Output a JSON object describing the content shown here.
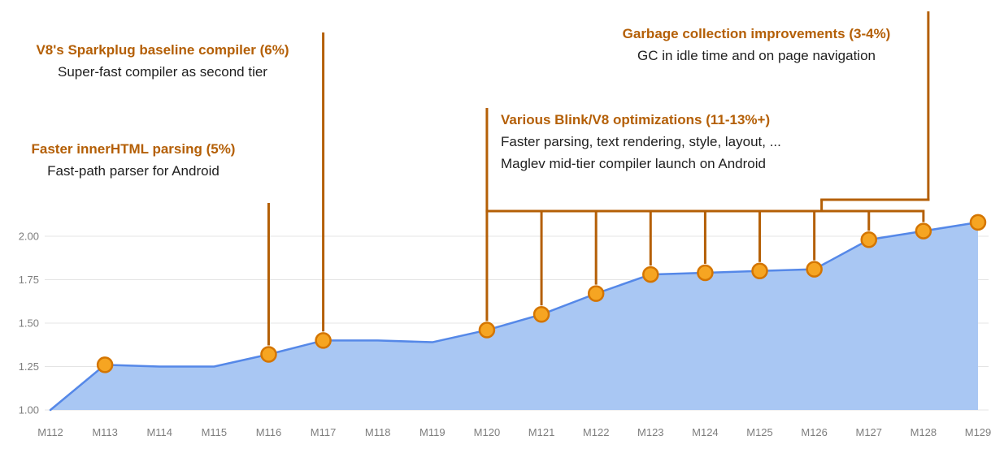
{
  "chart_data": {
    "type": "area",
    "title": "",
    "xlabel": "",
    "ylabel": "",
    "categories": [
      "M112",
      "M113",
      "M114",
      "M115",
      "M116",
      "M117",
      "M118",
      "M119",
      "M120",
      "M121",
      "M122",
      "M123",
      "M124",
      "M125",
      "M126",
      "M127",
      "M128",
      "M129"
    ],
    "values": [
      1.0,
      1.26,
      1.25,
      1.25,
      1.32,
      1.4,
      1.4,
      1.39,
      1.46,
      1.55,
      1.67,
      1.78,
      1.79,
      1.8,
      1.81,
      1.98,
      2.03,
      2.08
    ],
    "marker_milestones": [
      "M113",
      "M116",
      "M117",
      "M120",
      "M121",
      "M122",
      "M123",
      "M124",
      "M125",
      "M126",
      "M127",
      "M128",
      "M129"
    ],
    "y_ticks": [
      1.0,
      1.25,
      1.5,
      1.75,
      2.0
    ],
    "y_tick_labels": [
      "1.00",
      "1.25",
      "1.50",
      "1.75",
      "2.00"
    ],
    "ylim": [
      1.0,
      2.15
    ],
    "grid": "horizontal",
    "legend": "none"
  },
  "annotations": {
    "sparkplug": {
      "title": "V8's Sparkplug baseline compiler (6%)",
      "subtitle": "Super-fast compiler as second tier",
      "target": "M117"
    },
    "innerhtml": {
      "title": "Faster innerHTML parsing (5%)",
      "subtitle": "Fast-path parser for Android",
      "target": "M116"
    },
    "blink_v8": {
      "title": "Various Blink/V8 optimizations (11-13%+)",
      "subtitle1": "Faster parsing, text rendering, style, layout, ...",
      "subtitle2": "Maglev mid-tier compiler launch on Android",
      "target_range": [
        "M120",
        "M128"
      ]
    },
    "gc": {
      "title": "Garbage collection improvements (3-4%)",
      "subtitle": "GC in idle time and on page navigation",
      "target_range": [
        "M126",
        "M128"
      ]
    }
  },
  "colors": {
    "annotation_orange": "#b45f06",
    "marker_fill": "#f6a522",
    "marker_stroke": "#d47500",
    "line_blue": "#5588e8",
    "area_fill": "#a9c7f3",
    "grid": "#e4e4e4",
    "axis_text": "#7e7e7e",
    "subtitle_text": "#1f1f1f"
  }
}
